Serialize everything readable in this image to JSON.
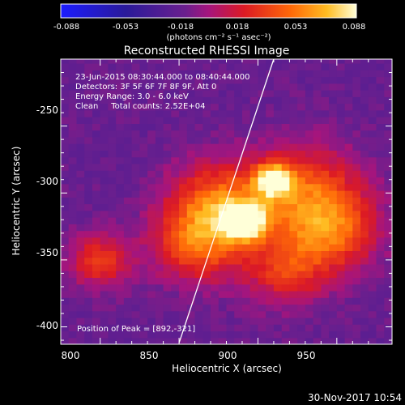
{
  "chart_data": {
    "type": "heatmap",
    "title": "Reconstructed RHESSI Image",
    "xlabel": "Heliocentric X (arcsec)",
    "ylabel": "Heliocentric Y (arcsec)",
    "xlim": [
      775,
      985
    ],
    "ylim": [
      -413,
      -200
    ],
    "x_ticks": [
      800,
      850,
      900,
      950
    ],
    "y_ticks": [
      -250,
      -300,
      -350,
      -400
    ],
    "x_tick_labels": [
      "800",
      "850",
      "900",
      "950"
    ],
    "y_tick_labels": [
      "-250",
      "-300",
      "-350",
      "-400"
    ],
    "colorbar": {
      "range": [
        -0.088,
        0.088
      ],
      "ticks": [
        "-0.088",
        "-0.053",
        "-0.018",
        "0.018",
        "0.053",
        "0.088"
      ],
      "unit_label": "(photons cm⁻² s⁻¹ asec⁻²)"
    },
    "info_lines": [
      "23-Jun-2015 08:30:44.000 to 08:40:44.000",
      "Detectors: 3F 5F 6F 7F 8F 9F, Att 0",
      "Energy Range: 3.0 - 6.0 keV",
      "Clean     Total counts: 2.52E+04"
    ],
    "peak_label": "Position of Peak = [892,-321]",
    "peak": [
      892,
      -321
    ],
    "grid": false,
    "limb_line": [
      [
        850,
        -412
      ],
      [
        910,
        -200
      ]
    ],
    "sources": [
      {
        "x": 892,
        "y": -321,
        "peak": 0.088,
        "sigma": 9
      },
      {
        "x": 910,
        "y": -290,
        "peak": 0.075,
        "sigma": 8
      },
      {
        "x": 875,
        "y": -308,
        "peak": 0.045,
        "sigma": 22
      },
      {
        "x": 930,
        "y": -300,
        "peak": 0.042,
        "sigma": 25
      },
      {
        "x": 862,
        "y": -338,
        "peak": 0.038,
        "sigma": 20
      },
      {
        "x": 948,
        "y": -330,
        "peak": 0.035,
        "sigma": 20
      },
      {
        "x": 800,
        "y": -350,
        "peak": 0.032,
        "sigma": 14
      },
      {
        "x": 918,
        "y": -358,
        "peak": 0.028,
        "sigma": 18
      }
    ],
    "background": -0.016
  },
  "timestamp": "30-Nov-2017 10:54"
}
